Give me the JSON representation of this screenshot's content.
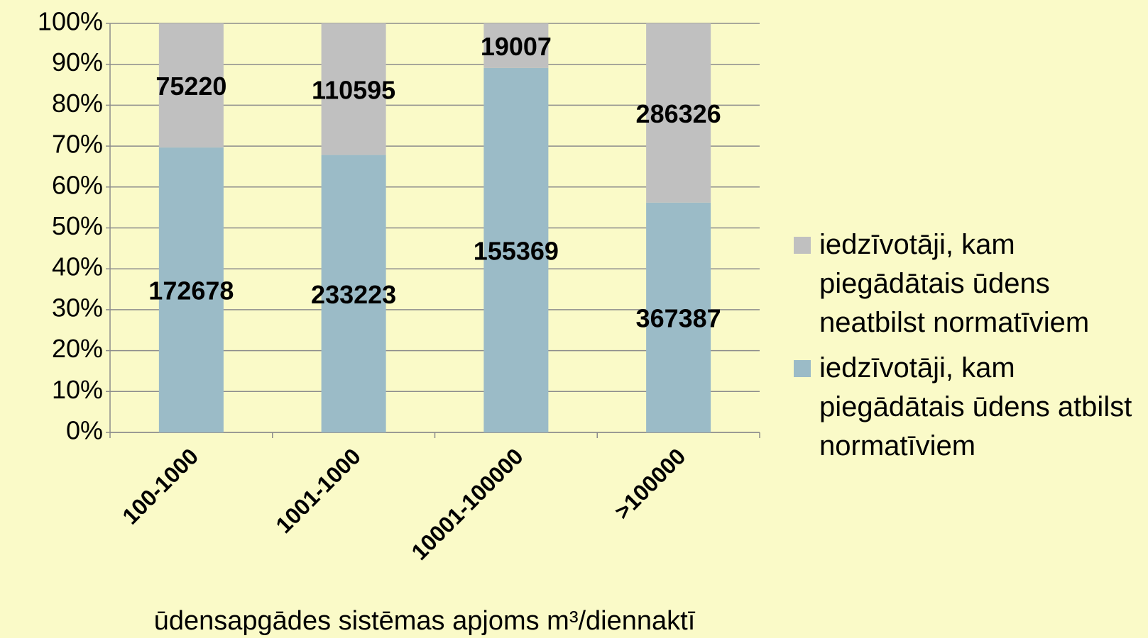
{
  "chart_data": {
    "type": "bar",
    "stacking": "percent",
    "x_label": "ūdensapgādes sistēmas apjoms m³/diennaktī",
    "categories": [
      "100-1000",
      "1001-1000",
      "10001-100000",
      ">100000"
    ],
    "series": [
      {
        "name": "iedzīvotāji, kam piegādātais ūdens atbilst normatīviem",
        "color": "#9bbbc7",
        "values": [
          172678,
          233223,
          155369,
          367387
        ]
      },
      {
        "name": "iedzīvotāji, kam piegādātais ūdens neatbilst normatīviem",
        "color": "#c0c0c0",
        "values": [
          75220,
          110595,
          19007,
          286326
        ]
      }
    ],
    "ylim": [
      0,
      100
    ],
    "yticks": [
      {
        "value": 0,
        "label": "0%"
      },
      {
        "value": 10,
        "label": "10%"
      },
      {
        "value": 20,
        "label": "20%"
      },
      {
        "value": 30,
        "label": "30%"
      },
      {
        "value": 40,
        "label": "40%"
      },
      {
        "value": 50,
        "label": "50%"
      },
      {
        "value": 60,
        "label": "60%"
      },
      {
        "value": 70,
        "label": "70%"
      },
      {
        "value": 80,
        "label": "80%"
      },
      {
        "value": 90,
        "label": "90%"
      },
      {
        "value": 100,
        "label": "100%"
      }
    ],
    "grid": true,
    "legend": "right"
  }
}
